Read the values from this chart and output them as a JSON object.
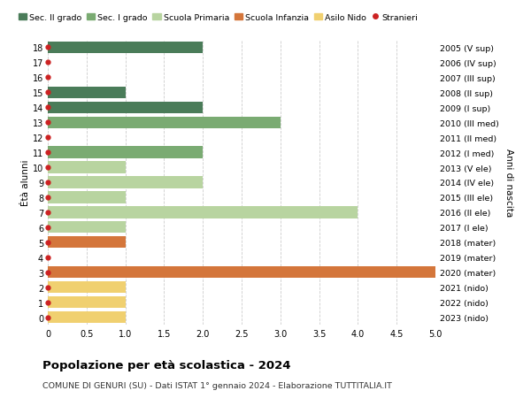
{
  "ages": [
    18,
    17,
    16,
    15,
    14,
    13,
    12,
    11,
    10,
    9,
    8,
    7,
    6,
    5,
    4,
    3,
    2,
    1,
    0
  ],
  "years_labels": [
    "2005 (V sup)",
    "2006 (IV sup)",
    "2007 (III sup)",
    "2008 (II sup)",
    "2009 (I sup)",
    "2010 (III med)",
    "2011 (II med)",
    "2012 (I med)",
    "2013 (V ele)",
    "2014 (IV ele)",
    "2015 (III ele)",
    "2016 (II ele)",
    "2017 (I ele)",
    "2018 (mater)",
    "2019 (mater)",
    "2020 (mater)",
    "2021 (nido)",
    "2022 (nido)",
    "2023 (nido)"
  ],
  "categories": [
    "Sec. II grado",
    "Sec. I grado",
    "Scuola Primaria",
    "Scuola Infanzia",
    "Asilo Nido",
    "Stranieri"
  ],
  "colors": {
    "Sec. II grado": "#4a7c59",
    "Sec. I grado": "#7aab72",
    "Scuola Primaria": "#b8d4a0",
    "Scuola Infanzia": "#d4763b",
    "Asilo Nido": "#f0d070",
    "Stranieri": "#cc2222"
  },
  "bar_data": [
    {
      "age": 18,
      "category": "Sec. II grado",
      "value": 2.0
    },
    {
      "age": 17,
      "category": "Sec. II grado",
      "value": 0.0
    },
    {
      "age": 16,
      "category": "Sec. II grado",
      "value": 0.0
    },
    {
      "age": 15,
      "category": "Sec. II grado",
      "value": 1.0
    },
    {
      "age": 14,
      "category": "Sec. II grado",
      "value": 2.0
    },
    {
      "age": 13,
      "category": "Sec. I grado",
      "value": 3.0
    },
    {
      "age": 12,
      "category": "Sec. I grado",
      "value": 0.0
    },
    {
      "age": 11,
      "category": "Sec. I grado",
      "value": 2.0
    },
    {
      "age": 10,
      "category": "Scuola Primaria",
      "value": 1.0
    },
    {
      "age": 9,
      "category": "Scuola Primaria",
      "value": 2.0
    },
    {
      "age": 8,
      "category": "Scuola Primaria",
      "value": 1.0
    },
    {
      "age": 7,
      "category": "Scuola Primaria",
      "value": 4.0
    },
    {
      "age": 6,
      "category": "Scuola Primaria",
      "value": 1.0
    },
    {
      "age": 5,
      "category": "Scuola Infanzia",
      "value": 1.0
    },
    {
      "age": 4,
      "category": "Scuola Infanzia",
      "value": 0.0
    },
    {
      "age": 3,
      "category": "Scuola Infanzia",
      "value": 5.0
    },
    {
      "age": 2,
      "category": "Asilo Nido",
      "value": 1.0
    },
    {
      "age": 1,
      "category": "Asilo Nido",
      "value": 1.0
    },
    {
      "age": 0,
      "category": "Asilo Nido",
      "value": 1.0
    }
  ],
  "stranieri_dots": [
    18,
    17,
    16,
    15,
    14,
    13,
    12,
    11,
    10,
    9,
    8,
    7,
    6,
    5,
    4,
    3,
    2,
    1,
    0
  ],
  "title": "Popolazione per età scolastica - 2024",
  "subtitle": "COMUNE DI GENURI (SU) - Dati ISTAT 1° gennaio 2024 - Elaborazione TUTTITALIA.IT",
  "ylabel_left": "Étà alunni",
  "ylabel_right": "Anni di nascita",
  "xlim": [
    0,
    5.0
  ],
  "xticks": [
    0,
    0.5,
    1.0,
    1.5,
    2.0,
    2.5,
    3.0,
    3.5,
    4.0,
    4.5,
    5.0
  ],
  "xtick_labels": [
    "0",
    "0.5",
    "1.0",
    "1.5",
    "2.0",
    "2.5",
    "3.0",
    "3.5",
    "4.0",
    "4.5",
    "5.0"
  ],
  "bg_color": "#ffffff",
  "grid_color": "#cccccc",
  "ylim_min": -0.5,
  "ylim_max": 18.5
}
